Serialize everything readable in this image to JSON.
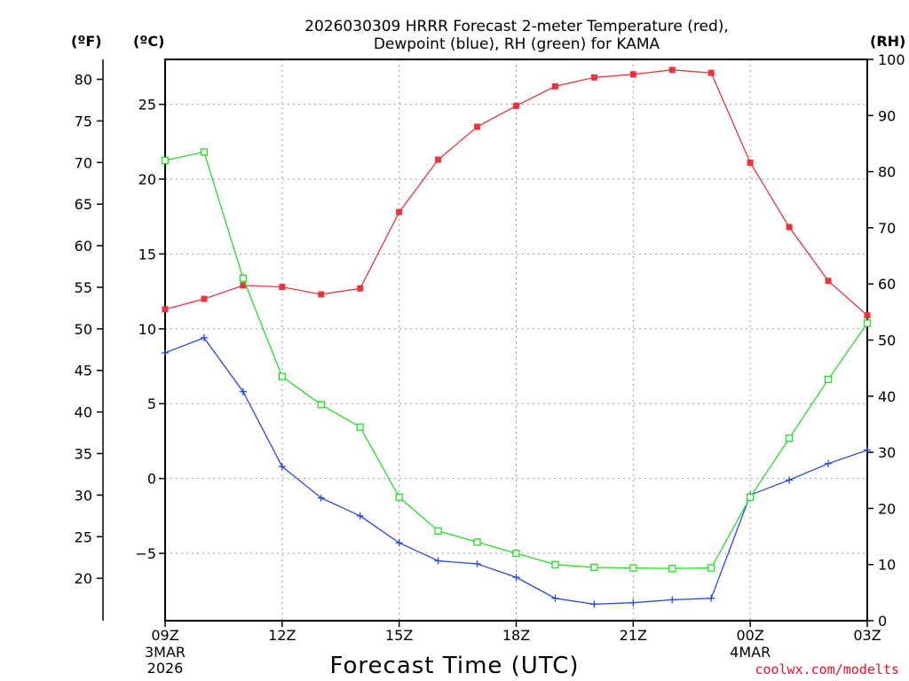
{
  "chart_data": {
    "type": "line",
    "title_line1": "2026030309 HRRR Forecast 2-meter Temperature (red),",
    "title_line2": "Dewpoint (blue), RH (green) for KAMA",
    "units": {
      "f": "(ºF)",
      "c": "(ºC)",
      "rh": "(RH)"
    },
    "xlabel": "Forecast Time (UTC)",
    "credit": "coolwx.com/modelts",
    "x_hours": [
      0,
      1,
      2,
      3,
      4,
      5,
      6,
      7,
      8,
      9,
      10,
      11,
      12,
      13,
      14,
      15,
      16,
      17,
      18
    ],
    "x_ticks": [
      {
        "hour": 0,
        "label": "09Z",
        "sub1": "3MAR",
        "sub2": "2026"
      },
      {
        "hour": 3,
        "label": "12Z",
        "sub1": "",
        "sub2": ""
      },
      {
        "hour": 6,
        "label": "15Z",
        "sub1": "",
        "sub2": ""
      },
      {
        "hour": 9,
        "label": "18Z",
        "sub1": "",
        "sub2": ""
      },
      {
        "hour": 12,
        "label": "21Z",
        "sub1": "",
        "sub2": ""
      },
      {
        "hour": 15,
        "label": "00Z",
        "sub1": "4MAR",
        "sub2": ""
      },
      {
        "hour": 18,
        "label": "03Z",
        "sub1": "",
        "sub2": ""
      }
    ],
    "celsius_axis": {
      "range": [
        -9.5,
        28
      ],
      "ticks": [
        -5,
        0,
        5,
        10,
        15,
        20,
        25
      ],
      "labels": [
        "−5",
        "0",
        "5",
        "10",
        "15",
        "20",
        "25"
      ]
    },
    "fahrenheit_axis": {
      "ticks": [
        20,
        25,
        30,
        35,
        40,
        45,
        50,
        55,
        60,
        65,
        70,
        75,
        80
      ],
      "labels": [
        "20",
        "25",
        "30",
        "35",
        "40",
        "45",
        "50",
        "55",
        "60",
        "65",
        "70",
        "75",
        "80"
      ]
    },
    "rh_axis": {
      "range": [
        0,
        100
      ],
      "ticks": [
        0,
        10,
        20,
        30,
        40,
        50,
        60,
        70,
        80,
        90,
        100
      ],
      "labels": [
        "0",
        "10",
        "20",
        "30",
        "40",
        "50",
        "60",
        "70",
        "80",
        "90",
        "100"
      ]
    },
    "series": [
      {
        "name": "2-meter Temperature",
        "unit": "C",
        "color": "#e8343c",
        "values": [
          11.3,
          12.0,
          12.9,
          12.8,
          12.3,
          12.7,
          17.8,
          21.3,
          23.5,
          24.9,
          26.2,
          26.8,
          27.0,
          27.3,
          27.1,
          21.1,
          16.8,
          13.2,
          10.9
        ]
      },
      {
        "name": "Dewpoint",
        "unit": "C",
        "color": "#2a46e0",
        "values": [
          8.4,
          9.4,
          5.8,
          0.8,
          -1.3,
          -2.5,
          -4.3,
          -5.5,
          -5.7,
          -6.6,
          -8.0,
          -8.4,
          -8.3,
          -8.1,
          -8.0,
          -1.1,
          -0.1,
          1.0,
          1.9
        ]
      },
      {
        "name": "RH",
        "unit": "%",
        "color": "#22dd22",
        "values": [
          82,
          83.5,
          61,
          43.5,
          38.5,
          34.5,
          22,
          16,
          14,
          12,
          10,
          9.5,
          9.4,
          9.3,
          9.4,
          22,
          32.5,
          43,
          53
        ]
      }
    ]
  }
}
